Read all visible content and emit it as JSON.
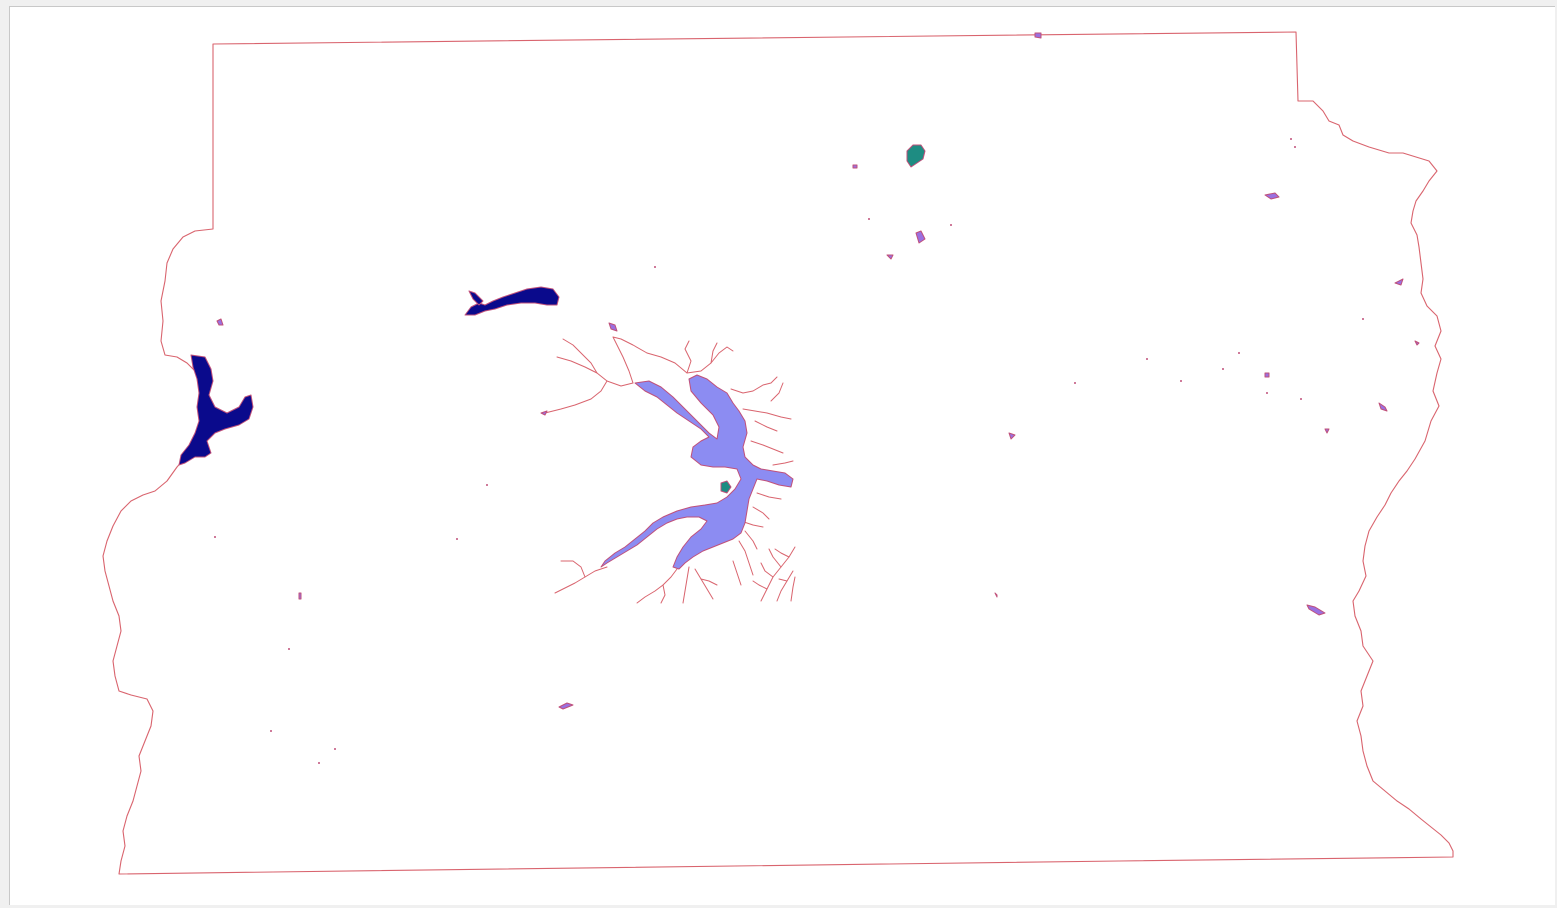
{
  "map": {
    "colors": {
      "canvas_background": "#ffffff",
      "frame_background": "#f0f0f0",
      "boundary": "#d9646e",
      "streams": "#d9646e",
      "reservoir_fill": "#8c8cf2",
      "large_lake_fill": "#0a0a8c",
      "teal_pond_fill": "#1e8c82",
      "small_pond_fill": "#9a70e0",
      "feature_outline": "#c0507a"
    },
    "features": [
      {
        "kind": "county-boundary",
        "label": ""
      },
      {
        "kind": "reservoir",
        "label": ""
      },
      {
        "kind": "lake",
        "label": ""
      },
      {
        "kind": "lake",
        "label": ""
      },
      {
        "kind": "pond",
        "label": ""
      }
    ]
  }
}
